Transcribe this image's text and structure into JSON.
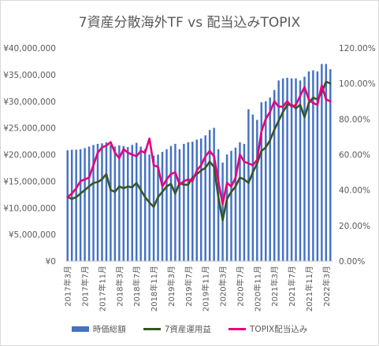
{
  "chart_data": {
    "type": "bar+line",
    "title": "7資産分散海外TF vs 配当込みTOPIX",
    "categories": [
      "2017年3月",
      "2017年4月",
      "2017年5月",
      "2017年6月",
      "2017年7月",
      "2017年8月",
      "2017年9月",
      "2017年10月",
      "2017年11月",
      "2017年12月",
      "2018年1月",
      "2018年2月",
      "2018年3月",
      "2018年4月",
      "2018年5月",
      "2018年6月",
      "2018年7月",
      "2018年8月",
      "2018年9月",
      "2018年10月",
      "2018年11月",
      "2018年12月",
      "2019年1月",
      "2019年2月",
      "2019年3月",
      "2019年4月",
      "2019年5月",
      "2019年6月",
      "2019年7月",
      "2019年8月",
      "2019年9月",
      "2019年10月",
      "2019年11月",
      "2019年12月",
      "2020年1月",
      "2020年2月",
      "2020年3月",
      "2020年4月",
      "2020年5月",
      "2020年6月",
      "2020年7月",
      "2020年8月",
      "2020年9月",
      "2020年10月",
      "2020年11月",
      "2020年12月",
      "2021年1月",
      "2021年2月",
      "2021年3月",
      "2021年4月",
      "2021年5月",
      "2021年6月",
      "2021年7月",
      "2021年8月",
      "2021年9月",
      "2021年10月",
      "2021年11月",
      "2021年12月",
      "2022年1月",
      "2022年2月",
      "2022年3月",
      "2022年4月"
    ],
    "x_tick_labels": [
      "2017年3月",
      "2017年7月",
      "2017年11月",
      "2018年3月",
      "2018年7月",
      "2018年11月",
      "2019年3月",
      "2019年7月",
      "2019年11月",
      "2020年3月",
      "2020年7月",
      "2020年11月",
      "2021年3月",
      "2021年7月",
      "2021年11月",
      "2022年3月"
    ],
    "y_left": {
      "ticks": [
        "¥0",
        "¥5,000,000",
        "¥10,000,000",
        "¥15,000,000",
        "¥20,000,000",
        "¥25,000,000",
        "¥30,000,000",
        "¥35,000,000",
        "¥40,000,000"
      ],
      "ylim": [
        0,
        40000000
      ]
    },
    "y_right": {
      "ticks": [
        "0.00%",
        "20.00%",
        "40.00%",
        "60.00%",
        "80.00%",
        "100.00%",
        "120.00%"
      ],
      "ylim": [
        0,
        120
      ]
    },
    "series": [
      {
        "name": "時価総額",
        "type": "bar",
        "axis": "left",
        "color": "#4472c4",
        "values": [
          20800000,
          20900000,
          20900000,
          21000000,
          21200000,
          21500000,
          21800000,
          22000000,
          22100000,
          22300000,
          21800000,
          21500000,
          21700000,
          21600000,
          21400000,
          21800000,
          22200000,
          21500000,
          21000000,
          20000000,
          19800000,
          20000000,
          20500000,
          21000000,
          21600000,
          22000000,
          21000000,
          22000000,
          22300000,
          22400000,
          22800000,
          23000000,
          23600000,
          24600000,
          25000000,
          21000000,
          18500000,
          20000000,
          20700000,
          21300000,
          22300000,
          22000000,
          28500000,
          27500000,
          26500000,
          29800000,
          30000000,
          30700000,
          32100000,
          33900000,
          34300000,
          34400000,
          34300000,
          34300000,
          33900000,
          34600000,
          35600000,
          35800000,
          35600000,
          37000000,
          37000000,
          36000000
        ]
      },
      {
        "name": "7資産運用益",
        "type": "line",
        "axis": "right",
        "color": "#375623",
        "values": [
          36,
          35,
          36,
          38,
          40,
          42,
          44,
          44.5,
          46,
          49,
          40,
          39,
          42,
          41,
          42,
          41.5,
          44,
          40,
          36,
          33,
          30.5,
          36,
          39,
          42,
          43.5,
          38,
          44,
          43,
          43,
          47,
          49,
          51,
          52.5,
          56,
          53,
          36,
          23,
          35,
          39,
          42,
          47,
          46,
          44,
          50,
          55,
          62,
          64,
          68,
          74,
          79,
          84,
          88,
          88,
          86,
          88,
          81,
          89,
          92,
          91,
          95,
          101,
          100
        ]
      },
      {
        "name": "TOPIX配当込み",
        "type": "line",
        "axis": "right",
        "color": "#e6007e",
        "values": [
          36,
          38,
          41,
          45,
          46,
          47,
          54,
          61,
          64,
          65,
          67,
          61,
          58,
          63,
          61,
          60,
          59,
          62,
          61,
          69,
          54,
          53,
          42,
          46,
          49,
          50,
          43,
          45,
          46,
          45,
          51,
          54,
          59,
          62,
          59,
          45,
          32,
          44,
          42,
          47,
          60,
          56,
          55,
          54,
          57,
          73,
          80,
          84,
          90,
          87,
          87,
          90,
          87,
          88,
          93,
          98,
          91,
          89,
          88,
          99,
          91,
          90
        ]
      }
    ],
    "legend_position": "bottom",
    "grid": false
  }
}
